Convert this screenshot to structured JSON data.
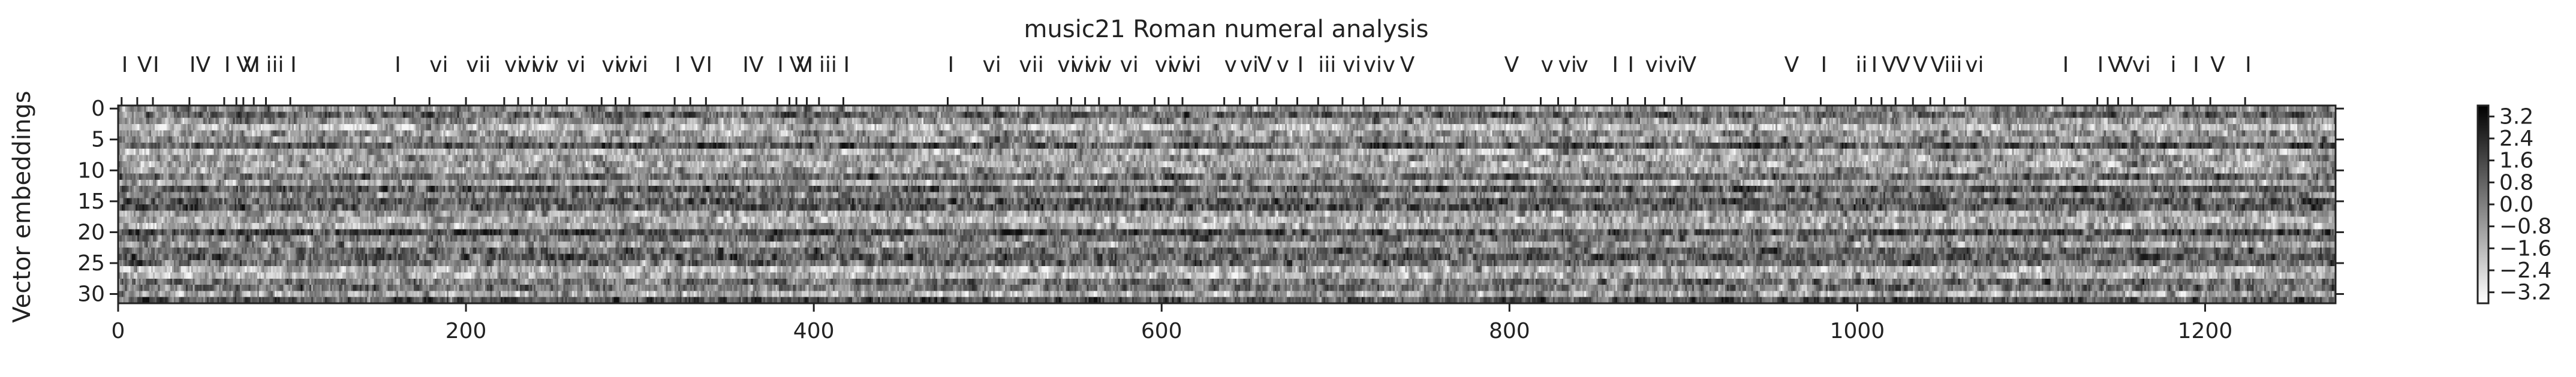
{
  "chart_data": {
    "type": "heatmap",
    "title": "music21 Roman numeral analysis",
    "xlabel": "",
    "ylabel": "Vector embeddings",
    "xlim": [
      0,
      1275
    ],
    "ylim": [
      0,
      32
    ],
    "x_ticks": [
      0,
      200,
      400,
      600,
      800,
      1000,
      1200
    ],
    "y_ticks": [
      0,
      5,
      10,
      15,
      20,
      25,
      30
    ],
    "rows": 32,
    "columns": 1275,
    "colormap": "greys",
    "colorbar": {
      "range": [
        -3.6,
        3.6
      ],
      "ticks": [
        "3.2",
        "2.4",
        "1.6",
        "0.8",
        "0.0",
        "−0.8",
        "−1.6",
        "−2.4",
        "−3.2"
      ]
    },
    "top_annotations": [
      {
        "x": 2,
        "label": "I"
      },
      {
        "x": 11,
        "label": "V"
      },
      {
        "x": 20,
        "label": "I"
      },
      {
        "x": 41,
        "label": "IV"
      },
      {
        "x": 61,
        "label": "I"
      },
      {
        "x": 68,
        "label": "V"
      },
      {
        "x": 72,
        "label": "V"
      },
      {
        "x": 78,
        "label": "I"
      },
      {
        "x": 85,
        "label": "iii"
      },
      {
        "x": 99,
        "label": "I"
      },
      {
        "x": 159,
        "label": "I"
      },
      {
        "x": 179,
        "label": "vi"
      },
      {
        "x": 200,
        "label": "vii"
      },
      {
        "x": 222,
        "label": "vi"
      },
      {
        "x": 230,
        "label": "vi"
      },
      {
        "x": 238,
        "label": "vi"
      },
      {
        "x": 246,
        "label": "v"
      },
      {
        "x": 258,
        "label": "vi"
      },
      {
        "x": 278,
        "label": "vi"
      },
      {
        "x": 286,
        "label": "vi"
      },
      {
        "x": 294,
        "label": "vi"
      },
      {
        "x": 320,
        "label": "I"
      },
      {
        "x": 329,
        "label": "V"
      },
      {
        "x": 338,
        "label": "I"
      },
      {
        "x": 359,
        "label": "IV"
      },
      {
        "x": 379,
        "label": "I"
      },
      {
        "x": 386,
        "label": "V"
      },
      {
        "x": 390,
        "label": "V"
      },
      {
        "x": 396,
        "label": "I"
      },
      {
        "x": 403,
        "label": "iii"
      },
      {
        "x": 417,
        "label": "I"
      },
      {
        "x": 477,
        "label": "I"
      },
      {
        "x": 497,
        "label": "vi"
      },
      {
        "x": 518,
        "label": "vii"
      },
      {
        "x": 540,
        "label": "vi"
      },
      {
        "x": 548,
        "label": "vi"
      },
      {
        "x": 556,
        "label": "vi"
      },
      {
        "x": 564,
        "label": "v"
      },
      {
        "x": 576,
        "label": "vi"
      },
      {
        "x": 596,
        "label": "vi"
      },
      {
        "x": 604,
        "label": "vi"
      },
      {
        "x": 612,
        "label": "vi"
      },
      {
        "x": 636,
        "label": "v"
      },
      {
        "x": 645,
        "label": "vi"
      },
      {
        "x": 655,
        "label": "V"
      },
      {
        "x": 666,
        "label": "v"
      },
      {
        "x": 678,
        "label": "I"
      },
      {
        "x": 690,
        "label": "iii"
      },
      {
        "x": 704,
        "label": "vi"
      },
      {
        "x": 716,
        "label": "vi"
      },
      {
        "x": 727,
        "label": "v"
      },
      {
        "x": 737,
        "label": "V"
      },
      {
        "x": 797,
        "label": "V"
      },
      {
        "x": 818,
        "label": "v"
      },
      {
        "x": 828,
        "label": "vi"
      },
      {
        "x": 838,
        "label": "v"
      },
      {
        "x": 859,
        "label": "I"
      },
      {
        "x": 868,
        "label": "I"
      },
      {
        "x": 878,
        "label": "vi"
      },
      {
        "x": 889,
        "label": "vi"
      },
      {
        "x": 899,
        "label": "V"
      },
      {
        "x": 958,
        "label": "V"
      },
      {
        "x": 979,
        "label": "I"
      },
      {
        "x": 999,
        "label": "ii"
      },
      {
        "x": 1008,
        "label": "I"
      },
      {
        "x": 1014,
        "label": "V"
      },
      {
        "x": 1022,
        "label": "V"
      },
      {
        "x": 1032,
        "label": "V"
      },
      {
        "x": 1042,
        "label": "V"
      },
      {
        "x": 1050,
        "label": "iii"
      },
      {
        "x": 1062,
        "label": "vi"
      },
      {
        "x": 1118,
        "label": "I"
      },
      {
        "x": 1138,
        "label": "I"
      },
      {
        "x": 1144,
        "label": "V"
      },
      {
        "x": 1150,
        "label": "V"
      },
      {
        "x": 1158,
        "label": "vi"
      },
      {
        "x": 1180,
        "label": "i"
      },
      {
        "x": 1193,
        "label": "I"
      },
      {
        "x": 1203,
        "label": "V"
      },
      {
        "x": 1223,
        "label": "I"
      }
    ]
  }
}
